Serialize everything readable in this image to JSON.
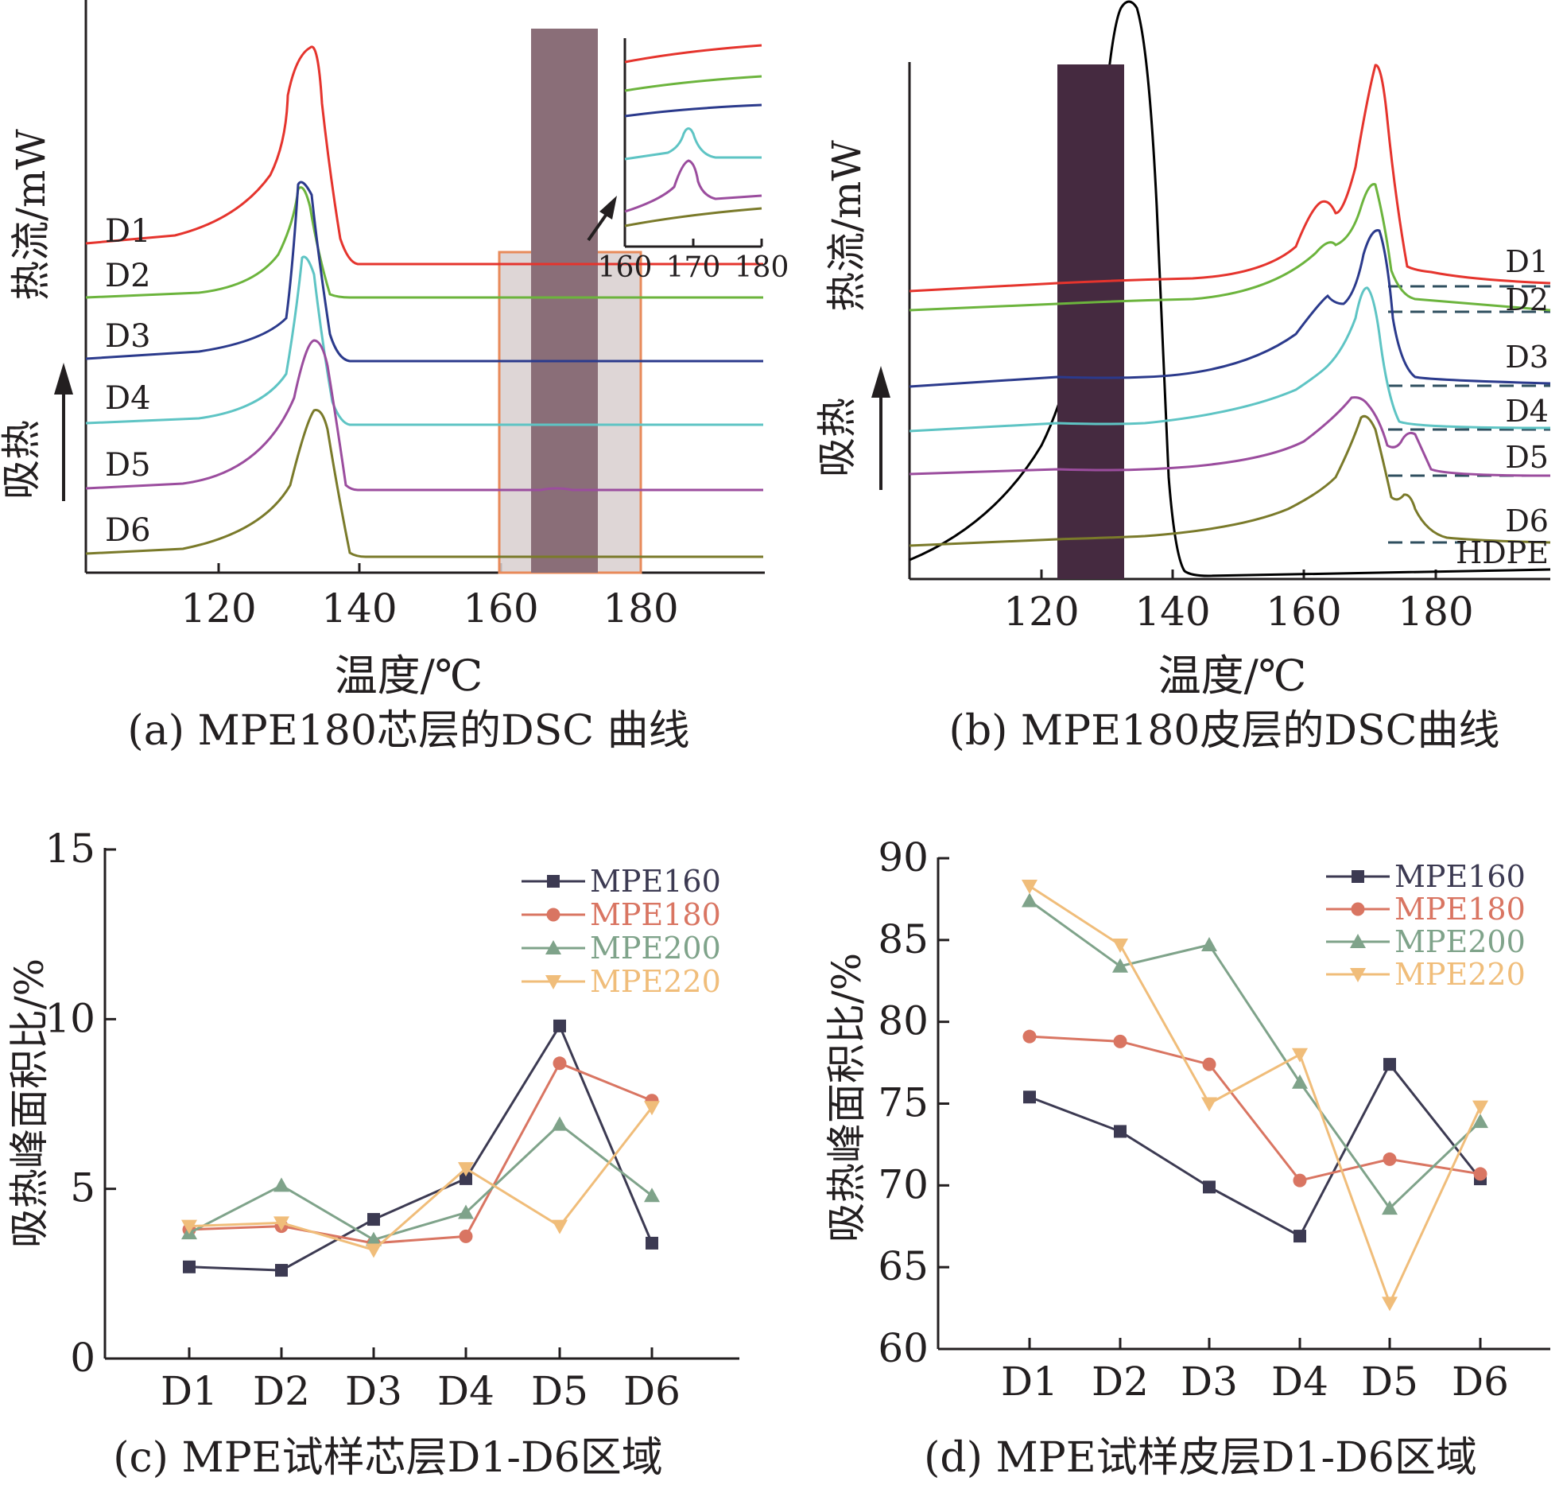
{
  "colors": {
    "axis": "#231f20",
    "red": "#e5342d",
    "green": "#6cb43d",
    "navy": "#2b3a8c",
    "cyan": "#5ec4c4",
    "purple": "#9b4d9e",
    "olive": "#7a7a2a",
    "mpe160": "#3c3a52",
    "mpe180": "#d97562",
    "mpe200": "#7fa38a",
    "mpe220": "#f0bd7a",
    "dashed": "#2f4f5f",
    "rect_fill": "#d8cfcf",
    "rect_stroke": "#e88a5a",
    "bar_a": "#8a6e78",
    "bar_b": "#452a40"
  },
  "panel_a": {
    "caption": "(a) MPE180芯层的DSC 曲线",
    "xlabel": "温度/℃",
    "ylabel": "热流/mW",
    "endo_label": "吸热",
    "x_ticks": [
      "120",
      "140",
      "160",
      "180"
    ],
    "curve_labels": [
      "D1",
      "D2",
      "D3",
      "D4",
      "D5",
      "D6"
    ],
    "inset_ticks": [
      "160",
      "170",
      "180"
    ]
  },
  "panel_b": {
    "caption": "(b) MPE180皮层的DSC曲线",
    "xlabel": "温度/℃",
    "ylabel": "热流/mW",
    "endo_label": "吸热",
    "x_ticks": [
      "120",
      "140",
      "160",
      "180"
    ],
    "curve_labels": [
      "D1",
      "D2",
      "D3",
      "D4",
      "D5",
      "D6",
      "HDPE"
    ]
  },
  "chart_data": [
    {
      "type": "line",
      "panel": "c",
      "title": "(c) MPE试样芯层D1-D6区域",
      "xlabel": "",
      "ylabel": "吸热峰面积比/%",
      "categories": [
        "D1",
        "D2",
        "D3",
        "D4",
        "D5",
        "D6"
      ],
      "ylim": [
        0,
        15
      ],
      "y_ticks": [
        "0",
        "5",
        "10",
        "15"
      ],
      "legend_position": "top-right",
      "series": [
        {
          "name": "MPE160",
          "marker": "square",
          "values": [
            2.7,
            2.6,
            4.1,
            5.3,
            9.8,
            3.4
          ]
        },
        {
          "name": "MPE180",
          "marker": "circle",
          "values": [
            3.8,
            3.9,
            3.4,
            3.6,
            8.7,
            7.6
          ]
        },
        {
          "name": "MPE200",
          "marker": "triangle-up",
          "values": [
            3.7,
            5.1,
            3.5,
            4.3,
            6.9,
            4.8
          ]
        },
        {
          "name": "MPE220",
          "marker": "triangle-down",
          "values": [
            3.9,
            4.0,
            3.2,
            5.6,
            3.9,
            7.4
          ]
        }
      ]
    },
    {
      "type": "line",
      "panel": "d",
      "title": "(d) MPE试样皮层D1-D6区域",
      "xlabel": "",
      "ylabel": "吸热峰面积比/%",
      "categories": [
        "D1",
        "D2",
        "D3",
        "D4",
        "D5",
        "D6"
      ],
      "ylim": [
        60,
        90
      ],
      "y_ticks": [
        "60",
        "65",
        "70",
        "75",
        "80",
        "85",
        "90"
      ],
      "legend_position": "top-right",
      "series": [
        {
          "name": "MPE160",
          "marker": "square",
          "values": [
            75.4,
            73.3,
            69.9,
            66.9,
            77.4,
            70.4
          ]
        },
        {
          "name": "MPE180",
          "marker": "circle",
          "values": [
            79.1,
            78.8,
            77.4,
            70.3,
            71.6,
            70.7
          ]
        },
        {
          "name": "MPE200",
          "marker": "triangle-up",
          "values": [
            87.4,
            83.4,
            84.7,
            76.3,
            68.6,
            73.9
          ]
        },
        {
          "name": "MPE220",
          "marker": "triangle-down",
          "values": [
            88.3,
            84.7,
            75.0,
            78.0,
            62.8,
            74.8
          ]
        }
      ]
    }
  ]
}
